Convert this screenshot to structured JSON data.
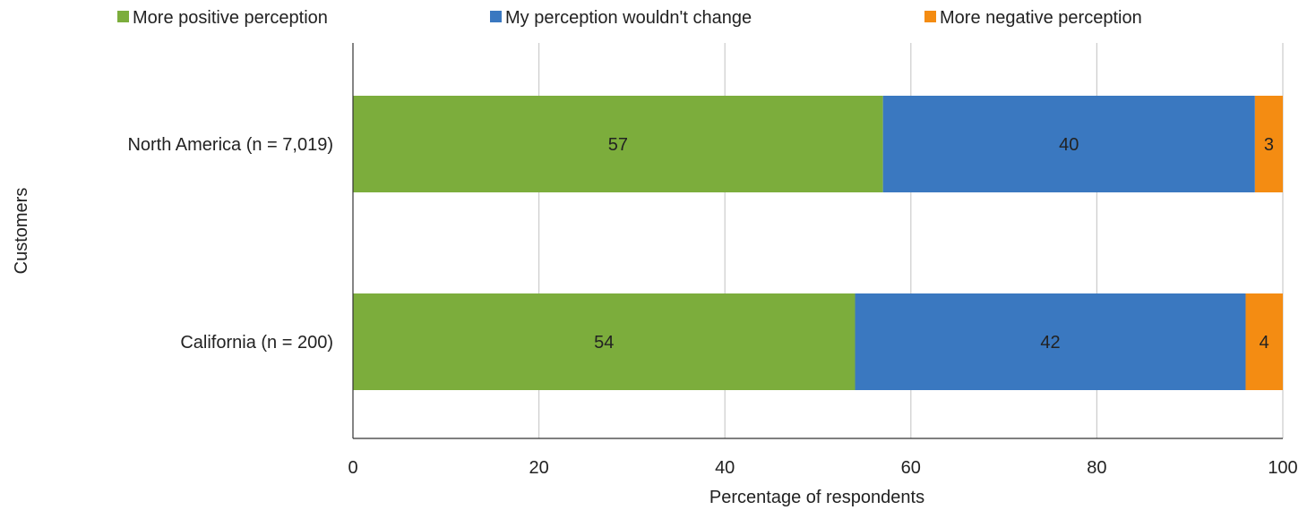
{
  "chart_data": {
    "type": "bar",
    "orientation": "horizontal",
    "stacked": true,
    "categories": [
      "North America (n = 7,019)",
      "California (n = 200)"
    ],
    "series": [
      {
        "name": "More positive perception",
        "color": "#7cad3c",
        "values": [
          57,
          54
        ]
      },
      {
        "name": "My perception wouldn't change",
        "color": "#3a78c0",
        "values": [
          40,
          42
        ]
      },
      {
        "name": "More negative perception",
        "color": "#f48c12",
        "values": [
          3,
          4
        ]
      }
    ],
    "xlabel": "Percentage of respondents",
    "ylabel": "Customers",
    "xlim": [
      0,
      100
    ],
    "xticks": [
      "0",
      "20",
      "40",
      "60",
      "80",
      "100"
    ],
    "grid": true,
    "legend_position": "top"
  }
}
